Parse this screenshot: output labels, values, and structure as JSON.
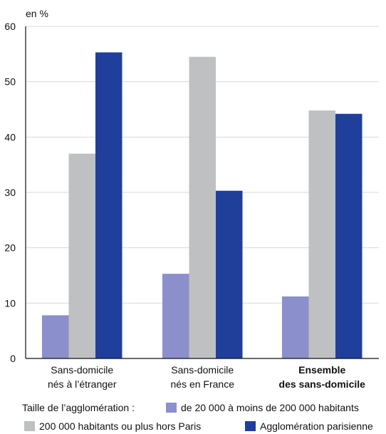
{
  "chart_data": {
    "type": "bar",
    "y_unit_label": "en %",
    "categories": [
      {
        "lines": [
          "Sans-domicile",
          "nés à l’étranger"
        ],
        "bold": false
      },
      {
        "lines": [
          "Sans-domicile",
          "nés en France"
        ],
        "bold": false
      },
      {
        "lines": [
          "Ensemble",
          "des sans-domicile"
        ],
        "bold": true
      }
    ],
    "series": [
      {
        "name": "de 20 000 à moins de 200 000 habitants",
        "color": "#8b8fcb",
        "values": [
          7.8,
          15.3,
          11.2
        ]
      },
      {
        "name": "200 000 habitants ou plus hors Paris",
        "color": "#bfc0c2",
        "values": [
          37.0,
          54.5,
          44.8
        ]
      },
      {
        "name": "Agglomération parisienne",
        "color": "#1f3f9a",
        "values": [
          55.3,
          30.3,
          44.2
        ]
      }
    ],
    "ylim": [
      0,
      60
    ],
    "yticks": [
      0,
      10,
      20,
      30,
      40,
      50,
      60
    ],
    "grid": true,
    "legend_title": "Taille de l’agglomération :",
    "legend_placement": "bottom",
    "title": "",
    "xlabel": "",
    "ylabel": ""
  }
}
